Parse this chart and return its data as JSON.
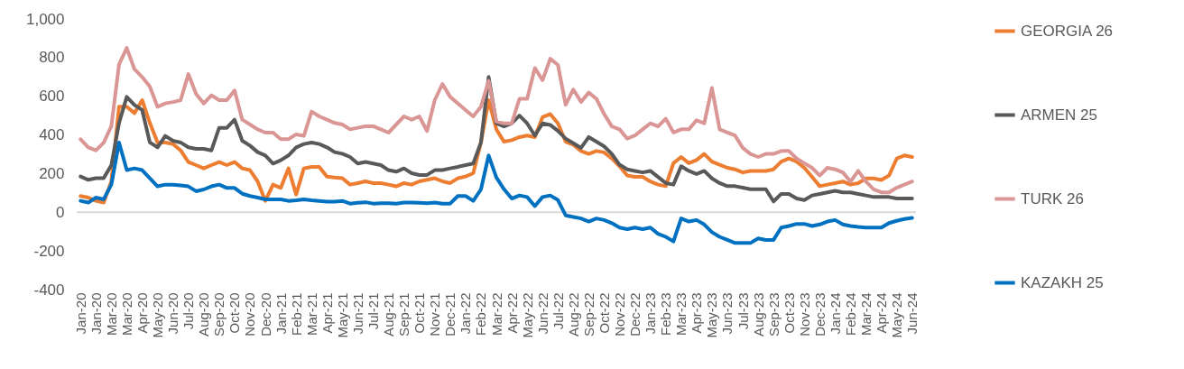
{
  "chart_data": {
    "type": "line",
    "categories": [
      "Jan-20",
      null,
      "Jan-20",
      null,
      "Mar-20",
      null,
      "Mar-20",
      null,
      "Apr-20",
      null,
      "May-20",
      null,
      "Jun-20",
      null,
      "Jul-20",
      null,
      "Aug-20",
      null,
      "Sep-20",
      null,
      "Oct-20",
      null,
      "Nov-20",
      null,
      "Dec-20",
      null,
      "Jan-21",
      null,
      "Feb-21",
      null,
      "Mar-21",
      null,
      "Apr-21",
      null,
      "May-21",
      null,
      "Jun-21",
      null,
      "Jul-21",
      null,
      "Aug-21",
      null,
      "Sep-21",
      null,
      "Oct-21",
      null,
      "Nov-21",
      null,
      "Dec-21",
      null,
      "Jan-22",
      null,
      "Feb-22",
      null,
      "Mar-22",
      null,
      "Apr-22",
      null,
      "May-22",
      null,
      "Jun-22",
      null,
      "Jul-22",
      null,
      "Aug-22",
      null,
      "Sep-22",
      null,
      "Oct-22",
      null,
      "Nov-22",
      null,
      "Dec-22",
      null,
      "Jan-23",
      null,
      "Feb-23",
      null,
      "Mar-23",
      null,
      "Apr-23",
      null,
      "May-23",
      null,
      "Jun-23",
      null,
      "Jul-23",
      null,
      "Aug-23",
      null,
      "Sep-23",
      null,
      "Oct-23",
      null,
      "Nov-23",
      null,
      "Dec-23",
      null,
      "Jan-24",
      null,
      "Feb-24",
      null,
      "Mar-24",
      null,
      "Apr-24",
      null,
      "May-24",
      null,
      "Jun-24"
    ],
    "series": [
      {
        "name": "GEORGIA 26",
        "color": "#ed7d31",
        "values": [
          84,
          76,
          59,
          50,
          160,
          546,
          546,
          513,
          580,
          462,
          361,
          361,
          353,
          320,
          260,
          244,
          227,
          244,
          260,
          244,
          260,
          227,
          218,
          160,
          59,
          143,
          126,
          227,
          92,
          227,
          235,
          235,
          185,
          180,
          176,
          143,
          151,
          160,
          151,
          151,
          143,
          134,
          151,
          143,
          160,
          168,
          176,
          160,
          151,
          176,
          185,
          202,
          361,
          580,
          429,
          365,
          373,
          389,
          397,
          389,
          492,
          508,
          460,
          365,
          349,
          317,
          302,
          317,
          310,
          278,
          238,
          190,
          183,
          183,
          159,
          143,
          135,
          254,
          286,
          254,
          270,
          302,
          262,
          246,
          230,
          222,
          206,
          214,
          214,
          214,
          222,
          262,
          278,
          262,
          230,
          183,
          135,
          143,
          151,
          159,
          143,
          151,
          175,
          175,
          167,
          190,
          278,
          294,
          286
        ]
      },
      {
        "name": "ARMEN 25",
        "color": "#595959",
        "values": [
          185,
          168,
          176,
          176,
          244,
          462,
          597,
          555,
          529,
          361,
          336,
          395,
          370,
          361,
          336,
          328,
          328,
          320,
          437,
          437,
          479,
          370,
          345,
          311,
          294,
          252,
          269,
          294,
          336,
          353,
          361,
          353,
          336,
          311,
          303,
          286,
          252,
          260,
          252,
          244,
          218,
          210,
          227,
          202,
          193,
          193,
          218,
          218,
          227,
          235,
          244,
          252,
          361,
          700,
          460,
          444,
          460,
          500,
          460,
          397,
          460,
          452,
          421,
          381,
          357,
          333,
          389,
          365,
          341,
          302,
          246,
          222,
          214,
          206,
          214,
          183,
          151,
          143,
          238,
          214,
          198,
          214,
          175,
          151,
          135,
          135,
          127,
          119,
          119,
          119,
          56,
          95,
          95,
          71,
          63,
          87,
          95,
          103,
          111,
          103,
          103,
          95,
          87,
          79,
          79,
          79,
          71,
          71,
          71
        ]
      },
      {
        "name": "TURK 26",
        "color": "#d99694",
        "values": [
          378,
          336,
          320,
          360,
          445,
          765,
          850,
          740,
          700,
          650,
          545,
          563,
          570,
          580,
          715,
          613,
          563,
          605,
          580,
          580,
          630,
          479,
          454,
          429,
          412,
          412,
          378,
          378,
          403,
          395,
          521,
          496,
          479,
          462,
          454,
          429,
          437,
          445,
          445,
          429,
          412,
          454,
          496,
          479,
          496,
          420,
          580,
          664,
          597,
          563,
          529,
          496,
          546,
          680,
          470,
          460,
          460,
          587,
          587,
          746,
          683,
          794,
          762,
          556,
          635,
          571,
          619,
          587,
          508,
          444,
          429,
          381,
          397,
          429,
          460,
          444,
          484,
          413,
          429,
          429,
          476,
          460,
          643,
          429,
          413,
          397,
          333,
          302,
          286,
          302,
          302,
          317,
          317,
          278,
          254,
          230,
          190,
          230,
          222,
          206,
          159,
          214,
          159,
          119,
          103,
          103,
          127,
          143,
          159
        ]
      },
      {
        "name": "KAZAKH 25",
        "color": "#0070c0",
        "values": [
          59,
          50,
          76,
          67,
          143,
          361,
          218,
          227,
          218,
          176,
          134,
          143,
          143,
          139,
          134,
          109,
          118,
          134,
          143,
          126,
          126,
          96,
          84,
          76,
          67,
          67,
          67,
          59,
          62,
          67,
          62,
          59,
          55,
          55,
          59,
          45,
          49,
          52,
          45,
          47,
          47,
          45,
          50,
          50,
          49,
          47,
          50,
          45,
          45,
          84,
          84,
          59,
          118,
          294,
          180,
          119,
          71,
          87,
          79,
          32,
          79,
          87,
          63,
          -16,
          -24,
          -32,
          -48,
          -32,
          -40,
          -56,
          -79,
          -87,
          -79,
          -87,
          -79,
          -111,
          -127,
          -151,
          -32,
          -48,
          -40,
          -63,
          -103,
          -127,
          -143,
          -159,
          -159,
          -159,
          -135,
          -143,
          -143,
          -79,
          -71,
          -60,
          -60,
          -71,
          -63,
          -48,
          -40,
          -63,
          -71,
          -76,
          -79,
          -79,
          -79,
          -56,
          -44,
          -35,
          -29
        ]
      }
    ],
    "ylim": [
      -400,
      1000
    ],
    "yticks": [
      -400,
      -200,
      0,
      200,
      400,
      600,
      800,
      {
        "value": 1000,
        "label": "1,000"
      }
    ],
    "ref_lines": [
      {
        "axis": "y",
        "value": 0,
        "color": "#d9d9d9"
      }
    ],
    "legend": "right",
    "marker": "none",
    "line_style": "solid"
  }
}
